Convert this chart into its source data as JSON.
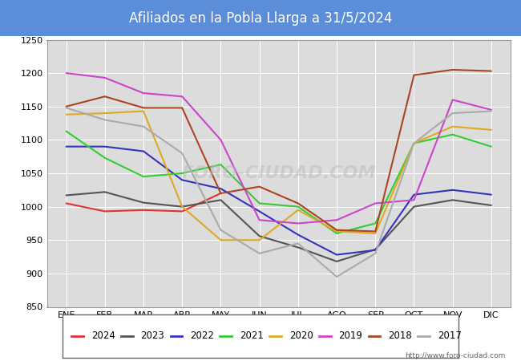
{
  "title": "Afiliados en la Pobla Llarga a 31/5/2024",
  "title_bg_color": "#5b8dd9",
  "title_text_color": "white",
  "plot_bg_color": "#dcdcdc",
  "fig_bg_color": "white",
  "ylim": [
    850,
    1250
  ],
  "yticks": [
    850,
    900,
    950,
    1000,
    1050,
    1100,
    1150,
    1200,
    1250
  ],
  "months": [
    "ENE",
    "FEB",
    "MAR",
    "ABR",
    "MAY",
    "JUN",
    "JUL",
    "AGO",
    "SEP",
    "OCT",
    "NOV",
    "DIC"
  ],
  "watermark": "FORO-CIUDAD.COM",
  "url": "http://www.foro-ciudad.com",
  "series": [
    {
      "year": "2024",
      "color": "#dd3333",
      "values": [
        1005,
        993,
        995,
        993,
        1020,
        null,
        null,
        null,
        null,
        null,
        null,
        null
      ]
    },
    {
      "year": "2023",
      "color": "#555555",
      "values": [
        1017,
        1022,
        1006,
        1000,
        1010,
        956,
        939,
        918,
        936,
        1000,
        1010,
        1002
      ]
    },
    {
      "year": "2022",
      "color": "#3333bb",
      "values": [
        1090,
        1090,
        1083,
        1040,
        1027,
        993,
        958,
        928,
        935,
        1018,
        1025,
        1018
      ]
    },
    {
      "year": "2021",
      "color": "#33cc33",
      "values": [
        1113,
        1073,
        1045,
        1050,
        1063,
        1005,
        1000,
        960,
        975,
        1095,
        1108,
        1090
      ]
    },
    {
      "year": "2020",
      "color": "#ddaa22",
      "values": [
        1138,
        1140,
        1143,
        1000,
        950,
        950,
        995,
        963,
        960,
        1095,
        1120,
        1115
      ]
    },
    {
      "year": "2019",
      "color": "#cc44cc",
      "values": [
        1200,
        1193,
        1170,
        1165,
        1100,
        980,
        975,
        980,
        1005,
        1010,
        1160,
        1145
      ]
    },
    {
      "year": "2018",
      "color": "#aa4422",
      "values": [
        1150,
        1165,
        1148,
        1148,
        1020,
        1030,
        1005,
        965,
        963,
        1197,
        1205,
        1203
      ]
    },
    {
      "year": "2017",
      "color": "#aaaaaa",
      "values": [
        1148,
        1130,
        1120,
        1080,
        965,
        930,
        945,
        895,
        930,
        1095,
        1140,
        1143
      ]
    }
  ]
}
